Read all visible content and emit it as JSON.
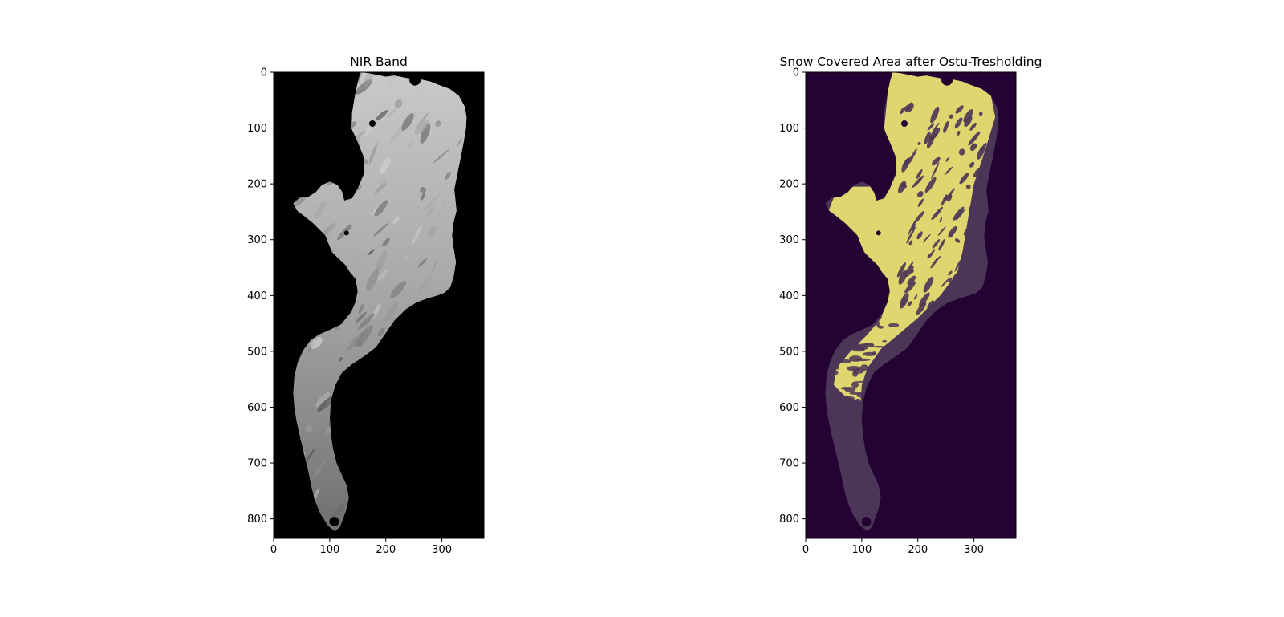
{
  "figure": {
    "background": "#ffffff"
  },
  "chart_data": [
    {
      "type": "heatmap",
      "title": "NIR Band",
      "xlabel": "",
      "ylabel": "",
      "colormap": "gray",
      "xlim": [
        0,
        375
      ],
      "ylim": [
        835,
        0
      ],
      "x_ticks": [
        0,
        100,
        200,
        300
      ],
      "y_ticks": [
        0,
        100,
        200,
        300,
        400,
        500,
        600,
        700,
        800
      ],
      "grid": false,
      "colors": {
        "background": "#000000",
        "glacier_light": "#c4c4c4",
        "glacier_dark": "#7e7e7e"
      }
    },
    {
      "type": "heatmap",
      "title": "Snow Covered Area after Ostu-Tresholding",
      "xlabel": "",
      "ylabel": "",
      "colormap": "viridis",
      "xlim": [
        0,
        375
      ],
      "ylim": [
        835,
        0
      ],
      "x_ticks": [
        0,
        100,
        200,
        300
      ],
      "y_ticks": [
        0,
        100,
        200,
        300,
        400,
        500,
        600,
        700,
        800
      ],
      "grid": false,
      "colors": {
        "background": "#240334",
        "glacier_ice": "#4c3657",
        "snow": "#dfd66f"
      }
    }
  ]
}
